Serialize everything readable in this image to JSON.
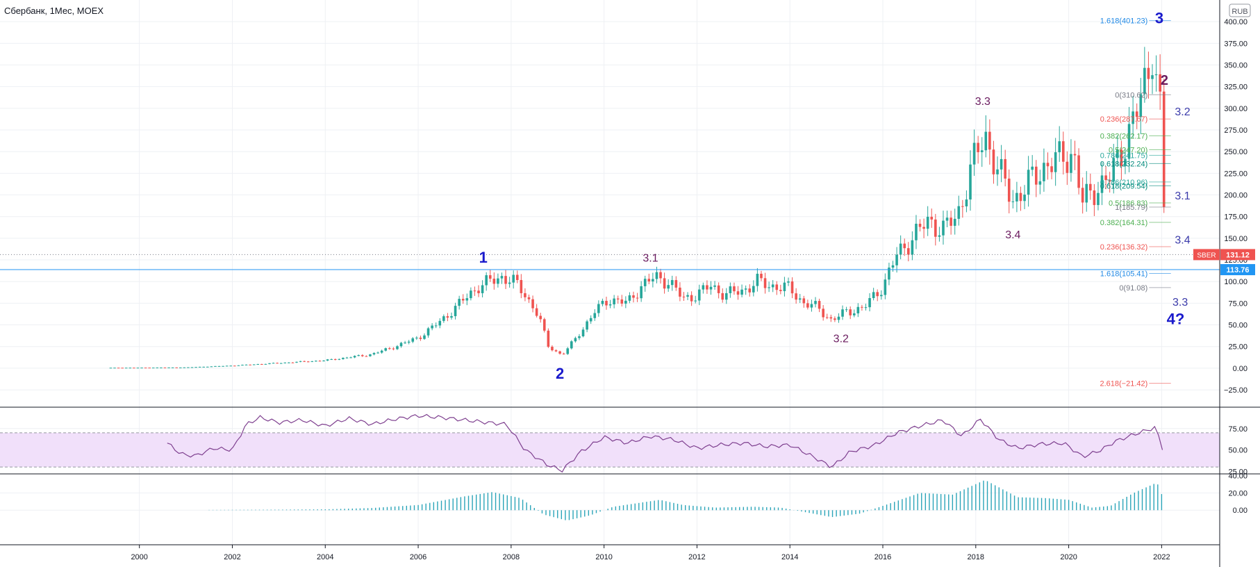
{
  "header": {
    "title": "Сбербанк, 1Мес, MOEX"
  },
  "currency_badge": "RUB",
  "price_tags": [
    {
      "symbol": "SBER",
      "value": "131.12",
      "price": 131.12,
      "color": "#ef5350"
    },
    {
      "symbol": "",
      "value": "113.76",
      "price": 113.76,
      "color": "#2196f3"
    }
  ],
  "colors": {
    "up": "#26a69a",
    "down": "#ef5350",
    "wave_blue": "#1a1acc",
    "wave_purple": "#6a1b5f",
    "rsi_line": "#7e3f8f",
    "rsi_band": "#f1e0fa",
    "hist": "#2aa4b8",
    "hline": "#2196f3"
  },
  "chart_data": [
    {
      "type": "candlestick",
      "title": "Сбербанк, 1Мес, MOEX",
      "x_range": [
        1997.0,
        2023.25
      ],
      "ylim": [
        -45,
        425
      ],
      "y_ticks": [
        "400.00",
        "375.00",
        "350.00",
        "325.00",
        "300.00",
        "275.00",
        "250.00",
        "225.00",
        "200.00",
        "175.00",
        "150.00",
        "125.00",
        "100.00",
        "75.00",
        "50.00",
        "25.00",
        "0.00",
        "−25.00"
      ],
      "y_tick_values": [
        400,
        375,
        350,
        325,
        300,
        275,
        250,
        225,
        200,
        175,
        150,
        125,
        100,
        75,
        50,
        25,
        0,
        -25
      ],
      "x_ticks": [
        "2000",
        "2002",
        "2004",
        "2006",
        "2008",
        "2010",
        "2012",
        "2014",
        "2016",
        "2018",
        "2020",
        "2022"
      ],
      "x_tick_values": [
        2000,
        2002,
        2004,
        2006,
        2008,
        2010,
        2012,
        2014,
        2016,
        2018,
        2020,
        2022
      ],
      "horizontal_line": 113.76,
      "dotted_line": 131.12,
      "price_path": [
        [
          1999.3,
          0.5
        ],
        [
          2000.0,
          0.6
        ],
        [
          2001.0,
          0.9
        ],
        [
          2002.0,
          3
        ],
        [
          2003.0,
          6
        ],
        [
          2004.0,
          9
        ],
        [
          2005.0,
          16
        ],
        [
          2005.5,
          25
        ],
        [
          2006.0,
          35
        ],
        [
          2006.5,
          55
        ],
        [
          2007.0,
          80
        ],
        [
          2007.3,
          95
        ],
        [
          2007.8,
          105
        ],
        [
          2008.0,
          103
        ],
        [
          2008.3,
          85
        ],
        [
          2008.6,
          60
        ],
        [
          2008.8,
          25
        ],
        [
          2009.1,
          15
        ],
        [
          2009.4,
          35
        ],
        [
          2009.8,
          65
        ],
        [
          2010.1,
          80
        ],
        [
          2010.5,
          75
        ],
        [
          2010.8,
          95
        ],
        [
          2011.1,
          105
        ],
        [
          2011.4,
          100
        ],
        [
          2011.7,
          80
        ],
        [
          2012.0,
          85
        ],
        [
          2012.3,
          95
        ],
        [
          2012.6,
          85
        ],
        [
          2013.0,
          90
        ],
        [
          2013.3,
          100
        ],
        [
          2013.6,
          95
        ],
        [
          2014.0,
          92
        ],
        [
          2014.3,
          75
        ],
        [
          2014.6,
          70
        ],
        [
          2014.9,
          55
        ],
        [
          2015.2,
          65
        ],
        [
          2015.6,
          70
        ],
        [
          2016.0,
          95
        ],
        [
          2016.3,
          130
        ],
        [
          2016.7,
          155
        ],
        [
          2017.0,
          170
        ],
        [
          2017.3,
          160
        ],
        [
          2017.6,
          175
        ],
        [
          2017.9,
          230
        ],
        [
          2018.2,
          270
        ],
        [
          2018.5,
          225
        ],
        [
          2018.8,
          195
        ],
        [
          2019.1,
          210
        ],
        [
          2019.5,
          235
        ],
        [
          2019.8,
          240
        ],
        [
          2020.1,
          250
        ],
        [
          2020.3,
          190
        ],
        [
          2020.6,
          210
        ],
        [
          2020.9,
          220
        ],
        [
          2021.2,
          260
        ],
        [
          2021.5,
          300
        ],
        [
          2021.7,
          340
        ],
        [
          2021.8,
          375
        ],
        [
          2021.95,
          310
        ],
        [
          2022.0,
          275
        ],
        [
          2022.08,
          131
        ]
      ],
      "fib_labels": [
        {
          "text": "1.618(401.23)",
          "price": 401.23,
          "color": "#1e88e5"
        },
        {
          "text": "0(310.62)",
          "price": 315.62,
          "color": "#787b86"
        },
        {
          "text": "0.236(287.67)",
          "price": 287.67,
          "color": "#ef5350"
        },
        {
          "text": "0.382(262.17)",
          "price": 268.17,
          "color": "#4caf50"
        },
        {
          "text": "0.5(247.20)",
          "price": 252.2,
          "color": "#4caf50"
        },
        {
          "text": "0.786(241.75)",
          "price": 245.75,
          "color": "#26a69a"
        },
        {
          "text": "0.618(232.24)",
          "price": 236.24,
          "color": "#00897b"
        },
        {
          "text": "0.786(210.96)",
          "price": 214.96,
          "color": "#26a69a"
        },
        {
          "text": "0.618(209.54)",
          "price": 210.54,
          "color": "#00897b"
        },
        {
          "text": "0.5(186.83)",
          "price": 190.83,
          "color": "#4caf50"
        },
        {
          "text": "1(185.79)",
          "price": 186.0,
          "color": "#787b86"
        },
        {
          "text": "0.382(164.31)",
          "price": 168.31,
          "color": "#4caf50"
        },
        {
          "text": "0.236(136.32)",
          "price": 140.32,
          "color": "#ef5350"
        },
        {
          "text": "1.618(105.41)",
          "price": 109.41,
          "color": "#1e88e5"
        },
        {
          "text": "0(91.08)",
          "price": 93.08,
          "color": "#787b86"
        },
        {
          "text": "2.618(−21.42)",
          "price": -17.42,
          "color": "#ef5350"
        }
      ],
      "wave_labels": [
        {
          "text": "1",
          "x": 2007.4,
          "price": 122,
          "color": "#1a1acc",
          "size": 22
        },
        {
          "text": "2",
          "x": 2009.05,
          "price": -12,
          "color": "#1a1acc",
          "size": 22
        },
        {
          "text": "3.1",
          "x": 2011.0,
          "price": 123,
          "color": "#6a1b5f",
          "size": 16
        },
        {
          "text": "3.2",
          "x": 2015.1,
          "price": 30,
          "color": "#6a1b5f",
          "size": 16
        },
        {
          "text": "3.3",
          "x": 2018.15,
          "price": 304,
          "color": "#6a1b5f",
          "size": 16
        },
        {
          "text": "3.4",
          "x": 2018.8,
          "price": 150,
          "color": "#6a1b5f",
          "size": 16
        },
        {
          "text": "3",
          "x": 2021.95,
          "price": 398,
          "color": "#1a1acc",
          "size": 22
        },
        {
          "text": "2",
          "x": 2022.06,
          "price": 327,
          "color": "#6a1b5f",
          "size": 20
        },
        {
          "text": "3.2",
          "x": 2022.45,
          "price": 292,
          "color": "#3a3aaa",
          "size": 16
        },
        {
          "text": "3.1",
          "x": 2022.45,
          "price": 195,
          "color": "#3a3aaa",
          "size": 16
        },
        {
          "text": "3.4",
          "x": 2022.45,
          "price": 144,
          "color": "#3a3aaa",
          "size": 16
        },
        {
          "text": "3.3",
          "x": 2022.4,
          "price": 72,
          "color": "#3a3aaa",
          "size": 16
        },
        {
          "text": "4?",
          "x": 2022.3,
          "price": 51,
          "color": "#1a1acc",
          "size": 22
        }
      ]
    },
    {
      "type": "line",
      "name": "RSI",
      "ylim": [
        22,
        100
      ],
      "y_ticks": [
        "75.00",
        "50.00",
        "25.00"
      ],
      "y_tick_values": [
        75,
        50,
        25
      ],
      "band": [
        30,
        70
      ],
      "values": [
        [
          2000.6,
          58
        ],
        [
          2000.9,
          45
        ],
        [
          2001.2,
          43
        ],
        [
          2001.6,
          52
        ],
        [
          2002.0,
          50
        ],
        [
          2002.3,
          80
        ],
        [
          2002.6,
          88
        ],
        [
          2003.0,
          82
        ],
        [
          2003.5,
          85
        ],
        [
          2004.0,
          78
        ],
        [
          2004.5,
          87
        ],
        [
          2005.0,
          80
        ],
        [
          2005.5,
          86
        ],
        [
          2006.0,
          90
        ],
        [
          2006.5,
          88
        ],
        [
          2007.0,
          85
        ],
        [
          2007.5,
          82
        ],
        [
          2007.9,
          80
        ],
        [
          2008.3,
          50
        ],
        [
          2008.8,
          32
        ],
        [
          2009.1,
          26
        ],
        [
          2009.5,
          48
        ],
        [
          2010.0,
          65
        ],
        [
          2010.5,
          58
        ],
        [
          2011.0,
          66
        ],
        [
          2011.5,
          62
        ],
        [
          2012.0,
          52
        ],
        [
          2012.5,
          56
        ],
        [
          2013.0,
          58
        ],
        [
          2013.5,
          54
        ],
        [
          2014.0,
          56
        ],
        [
          2014.5,
          42
        ],
        [
          2014.9,
          30
        ],
        [
          2015.3,
          48
        ],
        [
          2015.8,
          55
        ],
        [
          2016.3,
          70
        ],
        [
          2016.8,
          78
        ],
        [
          2017.3,
          85
        ],
        [
          2017.7,
          66
        ],
        [
          2018.1,
          86
        ],
        [
          2018.5,
          62
        ],
        [
          2018.9,
          52
        ],
        [
          2019.4,
          57
        ],
        [
          2019.9,
          58
        ],
        [
          2020.3,
          42
        ],
        [
          2020.7,
          50
        ],
        [
          2021.0,
          60
        ],
        [
          2021.4,
          68
        ],
        [
          2021.85,
          76
        ],
        [
          2022.0,
          58
        ],
        [
          2022.08,
          30
        ]
      ]
    },
    {
      "type": "histogram",
      "name": "MACD",
      "ylim": [
        -40,
        42
      ],
      "y_ticks": [
        "40.00",
        "20.00",
        "0.00"
      ],
      "y_tick_values": [
        40,
        20,
        0
      ],
      "anchors": [
        [
          2001.5,
          0.3
        ],
        [
          2003.0,
          0.6
        ],
        [
          2004.0,
          1
        ],
        [
          2005.0,
          2.5
        ],
        [
          2006.0,
          6
        ],
        [
          2007.0,
          16
        ],
        [
          2007.6,
          21
        ],
        [
          2008.2,
          14
        ],
        [
          2008.7,
          -5
        ],
        [
          2009.2,
          -12
        ],
        [
          2009.7,
          -6
        ],
        [
          2010.2,
          4
        ],
        [
          2011.2,
          12
        ],
        [
          2011.7,
          6
        ],
        [
          2012.4,
          3
        ],
        [
          2013.2,
          4
        ],
        [
          2013.8,
          3
        ],
        [
          2014.3,
          -2
        ],
        [
          2014.9,
          -8
        ],
        [
          2015.5,
          -4
        ],
        [
          2016.0,
          5
        ],
        [
          2016.8,
          20
        ],
        [
          2017.5,
          18
        ],
        [
          2018.2,
          35
        ],
        [
          2018.9,
          15
        ],
        [
          2019.5,
          14
        ],
        [
          2020.0,
          12
        ],
        [
          2020.5,
          3
        ],
        [
          2020.9,
          5
        ],
        [
          2021.4,
          20
        ],
        [
          2021.9,
          32
        ],
        [
          2022.08,
          8
        ]
      ]
    }
  ]
}
